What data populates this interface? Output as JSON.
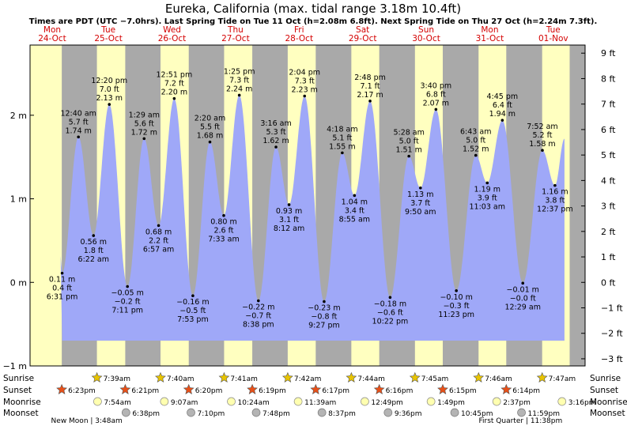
{
  "title": "Eureka, California (max. tidal range 3.18m 10.4ft)",
  "subtitle": "Times are PDT (UTC −7.0hrs). Last Spring Tide on Tue 11 Oct (h=2.08m 6.8ft). Next Spring Tide on Thu 27 Oct (h=2.24m 7.3ft).",
  "colors": {
    "night": "#a9a9a9",
    "day": "#ffffc0",
    "water": "#9fa8f8",
    "day_label": "#d40000",
    "sunrise": "#e8c400",
    "sunset": "#e85018",
    "moonrise": "#ffffb0",
    "moonset": "#b4b4b4"
  },
  "chart_data": {
    "type": "area",
    "title": "Eureka, California (max. tidal range 3.18m 10.4ft)",
    "x_unit": "hours since Mon 24-Oct 00:00 PDT",
    "y_unit": "m",
    "ylim": [
      -1,
      2.84
    ],
    "y_ticks_m": [
      {
        "v": -1,
        "label": "−1 m"
      },
      {
        "v": 0,
        "label": "0 m"
      },
      {
        "v": 1,
        "label": "1 m"
      },
      {
        "v": 2,
        "label": "2 m"
      }
    ],
    "y_ticks_ft": [
      {
        "v": -3,
        "label": "−3 ft"
      },
      {
        "v": -2,
        "label": "−2 ft"
      },
      {
        "v": -1,
        "label": "−1 ft"
      },
      {
        "v": 0,
        "label": "0 ft"
      },
      {
        "v": 1,
        "label": "1 ft"
      },
      {
        "v": 2,
        "label": "2 ft"
      },
      {
        "v": 3,
        "label": "3 ft"
      },
      {
        "v": 4,
        "label": "4 ft"
      },
      {
        "v": 5,
        "label": "5 ft"
      },
      {
        "v": 6,
        "label": "6 ft"
      },
      {
        "v": 7,
        "label": "7 ft"
      },
      {
        "v": 8,
        "label": "8 ft"
      },
      {
        "v": 9,
        "label": "9 ft"
      }
    ],
    "days": [
      {
        "wd": "Mon",
        "date": "24-Oct"
      },
      {
        "wd": "Tue",
        "date": "25-Oct"
      },
      {
        "wd": "Wed",
        "date": "26-Oct"
      },
      {
        "wd": "Thu",
        "date": "27-Oct"
      },
      {
        "wd": "Fri",
        "date": "28-Oct"
      },
      {
        "wd": "Sat",
        "date": "29-Oct"
      },
      {
        "wd": "Sun",
        "date": "30-Oct"
      },
      {
        "wd": "Mon",
        "date": "31-Oct"
      },
      {
        "wd": "Tue",
        "date": "01-Nov"
      }
    ],
    "tides": [
      {
        "t": 18.52,
        "h": 0.11,
        "type": "low",
        "m": "0.11 m",
        "ft": "0.4 ft",
        "time": "6:31 pm"
      },
      {
        "t": 24.67,
        "h": 1.74,
        "type": "high",
        "m": "1.74 m",
        "ft": "5.7 ft",
        "time": "12:40 am"
      },
      {
        "t": 30.37,
        "h": 0.56,
        "type": "low",
        "m": "0.56 m",
        "ft": "1.8 ft",
        "time": "6:22 am"
      },
      {
        "t": 36.33,
        "h": 2.13,
        "type": "high",
        "m": "2.13 m",
        "ft": "7.0 ft",
        "time": "12:20 pm"
      },
      {
        "t": 43.18,
        "h": -0.05,
        "type": "low",
        "m": "−0.05 m",
        "ft": "−0.2 ft",
        "time": "7:11 pm"
      },
      {
        "t": 49.48,
        "h": 1.72,
        "type": "high",
        "m": "1.72 m",
        "ft": "5.6 ft",
        "time": "1:29 am"
      },
      {
        "t": 54.95,
        "h": 0.68,
        "type": "low",
        "m": "0.68 m",
        "ft": "2.2 ft",
        "time": "6:57 am"
      },
      {
        "t": 60.85,
        "h": 2.2,
        "type": "high",
        "m": "2.20 m",
        "ft": "7.2 ft",
        "time": "12:51 pm"
      },
      {
        "t": 67.88,
        "h": -0.16,
        "type": "low",
        "m": "−0.16 m",
        "ft": "−0.5 ft",
        "time": "7:53 pm"
      },
      {
        "t": 74.33,
        "h": 1.68,
        "type": "high",
        "m": "1.68 m",
        "ft": "5.5 ft",
        "time": "2:20 am"
      },
      {
        "t": 79.55,
        "h": 0.8,
        "type": "low",
        "m": "0.80 m",
        "ft": "2.6 ft",
        "time": "7:33 am"
      },
      {
        "t": 85.42,
        "h": 2.24,
        "type": "high",
        "m": "2.24 m",
        "ft": "7.3 ft",
        "time": "1:25 pm"
      },
      {
        "t": 92.63,
        "h": -0.22,
        "type": "low",
        "m": "−0.22 m",
        "ft": "−0.7 ft",
        "time": "8:38 pm"
      },
      {
        "t": 99.27,
        "h": 1.62,
        "type": "high",
        "m": "1.62 m",
        "ft": "5.3 ft",
        "time": "3:16 am"
      },
      {
        "t": 104.2,
        "h": 0.93,
        "type": "low",
        "m": "0.93 m",
        "ft": "3.1 ft",
        "time": "8:12 am"
      },
      {
        "t": 110.07,
        "h": 2.23,
        "type": "high",
        "m": "2.23 m",
        "ft": "7.3 ft",
        "time": "2:04 pm"
      },
      {
        "t": 117.45,
        "h": -0.23,
        "type": "low",
        "m": "−0.23 m",
        "ft": "−0.8 ft",
        "time": "9:27 pm"
      },
      {
        "t": 124.3,
        "h": 1.55,
        "type": "high",
        "m": "1.55 m",
        "ft": "5.1 ft",
        "time": "4:18 am"
      },
      {
        "t": 128.92,
        "h": 1.04,
        "type": "low",
        "m": "1.04 m",
        "ft": "3.4 ft",
        "time": "8:55 am"
      },
      {
        "t": 134.8,
        "h": 2.17,
        "type": "high",
        "m": "2.17 m",
        "ft": "7.1 ft",
        "time": "2:48 pm"
      },
      {
        "t": 142.37,
        "h": -0.18,
        "type": "low",
        "m": "−0.18 m",
        "ft": "−0.6 ft",
        "time": "10:22 pm"
      },
      {
        "t": 149.47,
        "h": 1.51,
        "type": "high",
        "m": "1.51 m",
        "ft": "5.0 ft",
        "time": "5:28 am"
      },
      {
        "t": 153.83,
        "h": 1.13,
        "type": "low",
        "m": "1.13 m",
        "ft": "3.7 ft",
        "time": "9:50 am"
      },
      {
        "t": 159.67,
        "h": 2.07,
        "type": "high",
        "m": "2.07 m",
        "ft": "6.8 ft",
        "time": "3:40 pm"
      },
      {
        "t": 167.38,
        "h": -0.1,
        "type": "low",
        "m": "−0.10 m",
        "ft": "−0.3 ft",
        "time": "11:23 pm"
      },
      {
        "t": 174.72,
        "h": 1.52,
        "type": "high",
        "m": "1.52 m",
        "ft": "5.0 ft",
        "time": "6:43 am"
      },
      {
        "t": 179.05,
        "h": 1.19,
        "type": "low",
        "m": "1.19 m",
        "ft": "3.9 ft",
        "time": "11:03 am"
      },
      {
        "t": 184.75,
        "h": 1.94,
        "type": "high",
        "m": "1.94 m",
        "ft": "6.4 ft",
        "time": "4:45 pm"
      },
      {
        "t": 192.48,
        "h": -0.01,
        "type": "low",
        "m": "−0.01 m",
        "ft": "−0.0 ft",
        "time": "12:29 am"
      },
      {
        "t": 199.87,
        "h": 1.58,
        "type": "high",
        "m": "1.58 m",
        "ft": "5.2 ft",
        "time": "7:52 am"
      },
      {
        "t": 204.62,
        "h": 1.16,
        "type": "low",
        "m": "1.16 m",
        "ft": "3.8 ft",
        "time": "12:37 pm"
      }
    ],
    "sunrise": [
      {
        "t": 31.65,
        "label": "7:39am"
      },
      {
        "t": 55.67,
        "label": "7:40am"
      },
      {
        "t": 79.68,
        "label": "7:41am"
      },
      {
        "t": 103.7,
        "label": "7:42am"
      },
      {
        "t": 127.73,
        "label": "7:44am"
      },
      {
        "t": 151.75,
        "label": "7:45am"
      },
      {
        "t": 175.77,
        "label": "7:46am"
      },
      {
        "t": 199.78,
        "label": "7:47am"
      }
    ],
    "sunset": [
      {
        "t": 18.38,
        "label": "6:23pm"
      },
      {
        "t": 42.35,
        "label": "6:21pm"
      },
      {
        "t": 66.33,
        "label": "6:20pm"
      },
      {
        "t": 90.32,
        "label": "6:19pm"
      },
      {
        "t": 114.28,
        "label": "6:17pm"
      },
      {
        "t": 138.27,
        "label": "6:16pm"
      },
      {
        "t": 162.25,
        "label": "6:15pm"
      },
      {
        "t": 186.23,
        "label": "6:14pm"
      }
    ],
    "moonrise": [
      {
        "t": 31.9,
        "label": "7:54am"
      },
      {
        "t": 57.12,
        "label": "9:07am"
      },
      {
        "t": 82.4,
        "label": "10:24am"
      },
      {
        "t": 107.65,
        "label": "11:39am"
      },
      {
        "t": 132.82,
        "label": "12:49pm"
      },
      {
        "t": 157.82,
        "label": "1:49pm"
      },
      {
        "t": 182.62,
        "label": "2:37pm"
      },
      {
        "t": 207.27,
        "label": "3:16pm"
      }
    ],
    "moonset": [
      {
        "t": 42.63,
        "label": "6:38pm"
      },
      {
        "t": 67.17,
        "label": "7:10pm"
      },
      {
        "t": 91.8,
        "label": "7:48pm"
      },
      {
        "t": 116.62,
        "label": "8:37pm"
      },
      {
        "t": 141.6,
        "label": "9:36pm"
      },
      {
        "t": 166.75,
        "label": "10:45pm"
      },
      {
        "t": 191.98,
        "label": "11:59pm"
      }
    ],
    "moon_phases": [
      {
        "t": 27.8,
        "label": "New Moon | 3:48am"
      },
      {
        "t": 191.63,
        "label": "First Quarter | 11:38pm"
      }
    ],
    "row_labels": [
      "Sunrise",
      "Sunset",
      "Moonrise",
      "Moonset"
    ]
  }
}
